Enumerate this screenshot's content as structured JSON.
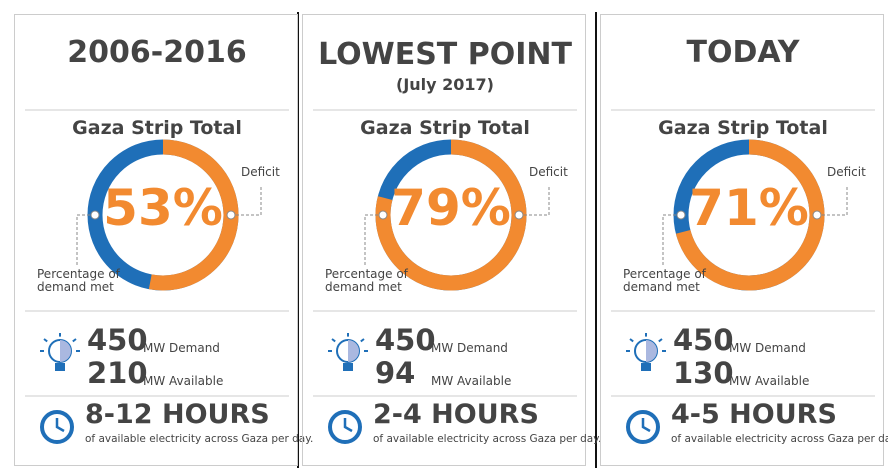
{
  "panels": [
    {
      "title": "2006-2016",
      "total_label": "Gaza Strip Total",
      "deficit": {
        "value": 53,
        "label": "53%"
      },
      "deficit_label": "Deficit",
      "met_label": "Percentage of demand met",
      "demand": "450",
      "demand_unit": "MW Demand",
      "available": "210",
      "available_unit": "MW Available",
      "hours": "8-12 HOURS",
      "hours_note": "of available electricity across Gaza per day."
    },
    {
      "title": "LOWEST POINT",
      "subtitle": "(July 2017)",
      "total_label": "Gaza Strip Total",
      "deficit": {
        "value": 79,
        "label": "79%"
      },
      "deficit_label": "Deficit",
      "met_label": "Percentage of demand met",
      "demand": "450",
      "demand_unit": "MW Demand",
      "available": "94",
      "available_unit": "MW Available",
      "hours": "2-4 HOURS",
      "hours_note": "of available electricity across Gaza per day."
    },
    {
      "title": "TODAY",
      "total_label": "Gaza Strip Total",
      "deficit": {
        "value": 71,
        "label": "71%"
      },
      "deficit_label": "Deficit",
      "met_label": "Percentage of demand met",
      "demand": "450",
      "demand_unit": "MW Demand",
      "available": "130",
      "available_unit": "MW Available",
      "hours": "4-5 HOURS",
      "hours_note": "of available electricity across Gaza per day."
    }
  ],
  "colors": {
    "deficit": "#f28a30",
    "met": "#1f6fb8"
  }
}
